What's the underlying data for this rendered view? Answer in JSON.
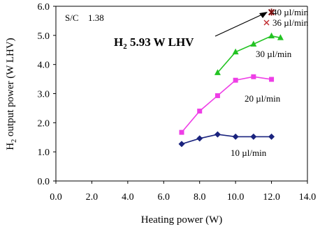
{
  "chart_data": {
    "type": "line",
    "xlabel": "Heating power (W)",
    "ylabel_main": "H",
    "ylabel_sub": "2",
    "ylabel_rest": " output power (W LHV)",
    "xlim": [
      0,
      14
    ],
    "ylim": [
      0,
      6
    ],
    "x_ticks": [
      0,
      2,
      4,
      6,
      8,
      10,
      12,
      14
    ],
    "x_tick_labels": [
      "0.0",
      "2.0",
      "4.0",
      "6.0",
      "8.0",
      "10.0",
      "12.0",
      "14.0"
    ],
    "y_ticks": [
      0,
      1,
      2,
      3,
      4,
      5,
      6
    ],
    "y_tick_labels": [
      "0.0",
      "1.0",
      "2.0",
      "3.0",
      "4.0",
      "5.0",
      "6.0"
    ],
    "grid": false,
    "series": [
      {
        "name": "10 µl/min",
        "marker": "diamond",
        "color": "#1a237e",
        "x": [
          7.0,
          8.0,
          9.0,
          10.0,
          11.0,
          12.0
        ],
        "y": [
          1.27,
          1.46,
          1.6,
          1.52,
          1.52,
          1.52
        ]
      },
      {
        "name": "20 µl/min",
        "marker": "square",
        "color": "#ee3ee6",
        "x": [
          7.0,
          8.0,
          9.0,
          10.0,
          11.0,
          12.0
        ],
        "y": [
          1.67,
          2.4,
          2.93,
          3.46,
          3.58,
          3.49
        ]
      },
      {
        "name": "30 µl/min",
        "marker": "triangle",
        "color": "#22c322",
        "x": [
          9.0,
          10.0,
          11.0,
          12.0,
          12.5
        ],
        "y": [
          3.72,
          4.43,
          4.7,
          4.98,
          4.92
        ]
      },
      {
        "name": "36 µl/min",
        "marker": "x",
        "color": "#c0282c",
        "x": [
          12.0
        ],
        "y": [
          5.78
        ]
      },
      {
        "name": "40 µl/min",
        "marker": "star",
        "color": "#7a1010",
        "x": [
          12.0
        ],
        "y": [
          5.8
        ]
      }
    ],
    "annotations": {
      "sc_label": "S/C",
      "sc_value": "1.38",
      "callout_h": "H",
      "callout_sub": "2",
      "callout_rest": " 5.93 W LHV"
    }
  }
}
